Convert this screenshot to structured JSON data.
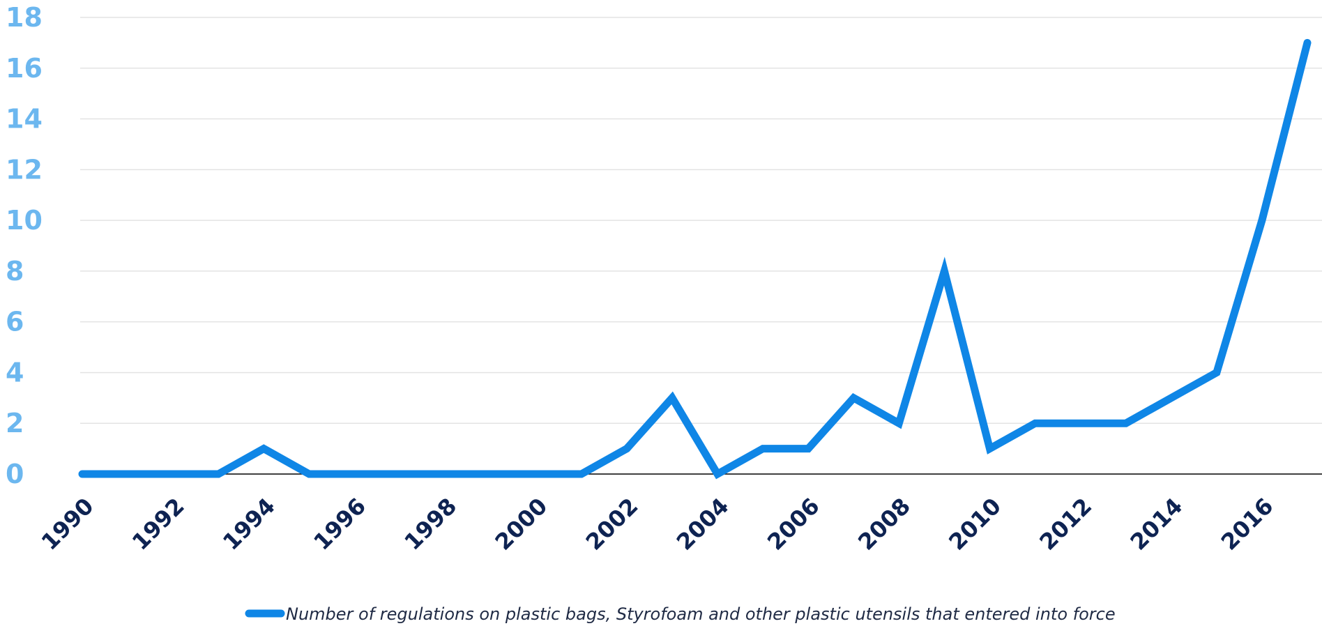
{
  "chart_data": {
    "type": "line",
    "title": "",
    "xlabel": "",
    "ylabel": "",
    "x": [
      1990,
      1991,
      1992,
      1993,
      1994,
      1995,
      1996,
      1997,
      1998,
      1999,
      2000,
      2001,
      2002,
      2003,
      2004,
      2005,
      2006,
      2007,
      2008,
      2009,
      2010,
      2011,
      2012,
      2013,
      2014,
      2015,
      2016,
      2017
    ],
    "series": [
      {
        "name": "Number of regulations on plastic bags, Styrofoam and other plastic utensils that entered into force",
        "values": [
          0,
          0,
          0,
          0,
          1,
          0,
          0,
          0,
          0,
          0,
          0,
          0,
          1,
          3,
          0,
          1,
          1,
          3,
          2,
          8,
          1,
          2,
          2,
          2,
          3,
          4,
          10,
          17
        ],
        "color": "#0f86e6"
      }
    ],
    "xticks": [
      "1990",
      "1992",
      "1994",
      "1996",
      "1998",
      "2000",
      "2002",
      "2004",
      "2006",
      "2008",
      "2010",
      "2012",
      "2014",
      "2016"
    ],
    "yticks": [
      "0",
      "2",
      "4",
      "6",
      "8",
      "10",
      "12",
      "14",
      "16",
      "18"
    ],
    "ylim": [
      0,
      18
    ],
    "xlim": [
      1990,
      2017
    ],
    "grid": true,
    "legend_position": "bottom-center",
    "colors": {
      "line": "#0f86e6",
      "ytick_text": "#6cb7ef",
      "xtick_text": "#0e2352",
      "grid": "#e3e3e3",
      "axis": "#000000"
    }
  }
}
